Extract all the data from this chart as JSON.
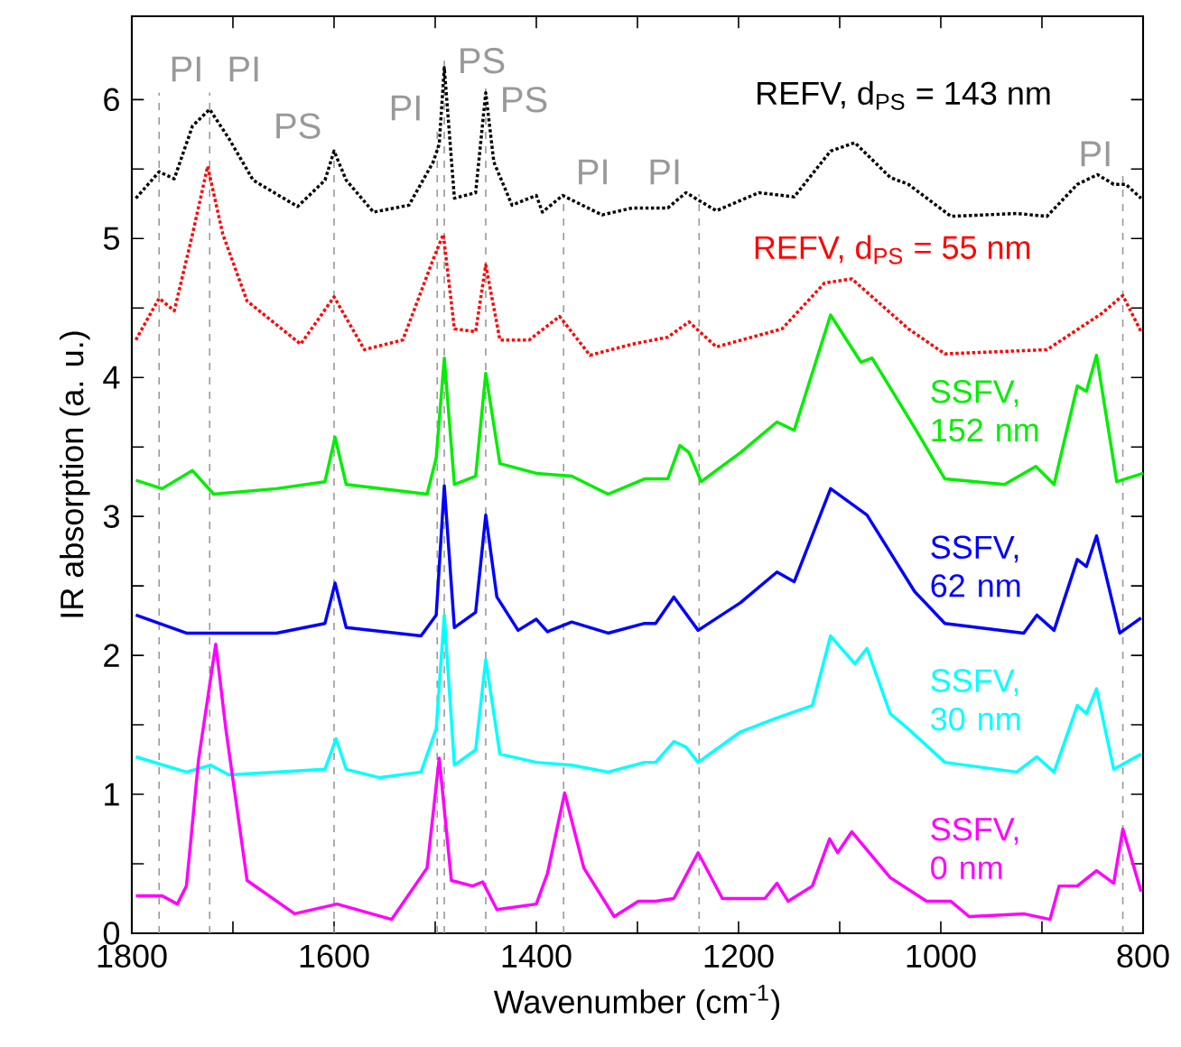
{
  "chart_data": {
    "type": "line",
    "xlabel": "Wavenumber (cm$^{-1}$)",
    "ylabel": "IR absorption (a. u.)",
    "xlim": [
      1800,
      800
    ],
    "ylim": [
      0,
      6.6
    ],
    "xticks": [
      1800,
      {
        "value": 1700,
        "label": null
      },
      1600,
      {
        "value": 1500,
        "label": null
      },
      1400,
      {
        "value": 1300,
        "label": null
      },
      1200,
      {
        "value": 1100,
        "label": null
      },
      1000,
      {
        "value": 900,
        "label": null
      },
      800
    ],
    "yticks": [
      0,
      {
        "value": 0.5,
        "label": null
      },
      1,
      {
        "value": 1.5,
        "label": null
      },
      2,
      {
        "value": 2.5,
        "label": null
      },
      3,
      {
        "value": 3.5,
        "label": null
      },
      4,
      {
        "value": 4.5,
        "label": null
      },
      5,
      {
        "value": 5.5,
        "label": null
      },
      6
    ],
    "ref_lines": [
      {
        "axis": "x",
        "value": 1773,
        "label": "PI",
        "color": "#999999",
        "line_style": "dashed"
      },
      {
        "axis": "x",
        "value": 1723,
        "label": "PI",
        "color": "#999999",
        "line_style": "dashed"
      },
      {
        "axis": "x",
        "value": 1600,
        "label": "PS",
        "color": "#999999",
        "line_style": "dashed"
      },
      {
        "axis": "x",
        "value": 1498,
        "label": "PI",
        "color": "#999999",
        "line_style": "dashed"
      },
      {
        "axis": "x",
        "value": 1491,
        "label": "PS",
        "color": "#999999",
        "line_style": "dashed"
      },
      {
        "axis": "x",
        "value": 1450,
        "label": "PS",
        "color": "#999999",
        "line_style": "dashed"
      },
      {
        "axis": "x",
        "value": 1373,
        "label": "PI",
        "color": "#999999",
        "line_style": "dashed"
      },
      {
        "axis": "x",
        "value": 1239,
        "label": "PI",
        "color": "#999999",
        "line_style": "dashed"
      },
      {
        "axis": "x",
        "value": 820,
        "label": "PI",
        "color": "#999999",
        "line_style": "dashed"
      }
    ],
    "series": [
      {
        "name": "REFV, d$_{PS}$ = 143 nm",
        "color": "#000000",
        "line_style": "dotted",
        "x": [
          1796,
          1773,
          1758,
          1740,
          1723,
          1704,
          1680,
          1636,
          1609,
          1600,
          1588,
          1561,
          1526,
          1502,
          1496,
          1491,
          1481,
          1460,
          1450,
          1442,
          1424,
          1400,
          1394,
          1374,
          1335,
          1305,
          1270,
          1252,
          1222,
          1180,
          1145,
          1109,
          1085,
          1050,
          1032,
          990,
          925,
          895,
          865,
          845,
          829,
          817,
          802
        ],
        "values": [
          5.29,
          5.48,
          5.43,
          5.81,
          5.93,
          5.72,
          5.42,
          5.23,
          5.42,
          5.63,
          5.42,
          5.19,
          5.24,
          5.55,
          5.68,
          6.23,
          5.29,
          5.33,
          6.05,
          5.55,
          5.24,
          5.31,
          5.19,
          5.31,
          5.17,
          5.22,
          5.22,
          5.33,
          5.2,
          5.33,
          5.3,
          5.63,
          5.69,
          5.44,
          5.39,
          5.16,
          5.18,
          5.16,
          5.39,
          5.46,
          5.39,
          5.39,
          5.29
        ]
      },
      {
        "name": "REFV, d$_{PS}$ = 55 nm",
        "color": "#ff0000",
        "line_style": "dotted",
        "x": [
          1796,
          1773,
          1758,
          1740,
          1725,
          1710,
          1686,
          1633,
          1600,
          1570,
          1532,
          1502,
          1492,
          1481,
          1460,
          1450,
          1436,
          1407,
          1377,
          1347,
          1305,
          1270,
          1249,
          1222,
          1157,
          1115,
          1088,
          1032,
          996,
          895,
          841,
          820,
          802
        ],
        "values": [
          4.27,
          4.57,
          4.48,
          5.03,
          5.52,
          5.03,
          4.55,
          4.24,
          4.58,
          4.2,
          4.27,
          4.85,
          5.03,
          4.35,
          4.33,
          4.81,
          4.27,
          4.27,
          4.44,
          4.16,
          4.24,
          4.29,
          4.4,
          4.22,
          4.35,
          4.68,
          4.71,
          4.35,
          4.17,
          4.2,
          4.46,
          4.59,
          4.33
        ]
      },
      {
        "name": "SSFV, 152 nm",
        "color": "#00ee00",
        "line_style": "solid",
        "x": [
          1796,
          1770,
          1740,
          1719,
          1657,
          1609,
          1599,
          1588,
          1508,
          1499,
          1491,
          1481,
          1460,
          1450,
          1436,
          1400,
          1365,
          1329,
          1293,
          1270,
          1258,
          1249,
          1237,
          1198,
          1162,
          1145,
          1109,
          1079,
          1068,
          1026,
          996,
          937,
          906,
          888,
          865,
          856,
          846,
          826,
          800
        ],
        "values": [
          3.26,
          3.2,
          3.33,
          3.16,
          3.2,
          3.25,
          3.57,
          3.23,
          3.16,
          3.42,
          4.14,
          3.23,
          3.29,
          4.03,
          3.38,
          3.31,
          3.29,
          3.16,
          3.27,
          3.27,
          3.51,
          3.46,
          3.25,
          3.46,
          3.68,
          3.62,
          4.45,
          4.11,
          4.14,
          3.64,
          3.27,
          3.23,
          3.36,
          3.23,
          3.94,
          3.9,
          4.16,
          3.25,
          3.31
        ]
      },
      {
        "name": "SSFV, 62 nm",
        "color": "#0000ff",
        "line_style": "solid",
        "x": [
          1796,
          1746,
          1657,
          1609,
          1599,
          1588,
          1514,
          1499,
          1491,
          1481,
          1460,
          1450,
          1439,
          1418,
          1400,
          1389,
          1365,
          1329,
          1293,
          1282,
          1264,
          1240,
          1198,
          1162,
          1145,
          1109,
          1073,
          1026,
          996,
          918,
          905,
          888,
          865,
          856,
          846,
          823,
          802
        ],
        "values": [
          2.29,
          2.16,
          2.16,
          2.23,
          2.52,
          2.2,
          2.14,
          2.29,
          3.22,
          2.2,
          2.31,
          3.01,
          2.42,
          2.18,
          2.26,
          2.17,
          2.24,
          2.16,
          2.23,
          2.23,
          2.42,
          2.18,
          2.38,
          2.6,
          2.53,
          3.2,
          3.01,
          2.46,
          2.23,
          2.16,
          2.29,
          2.18,
          2.69,
          2.64,
          2.86,
          2.16,
          2.27
        ]
      },
      {
        "name": "SSFV, 30 nm",
        "color": "#00ffff",
        "line_style": "solid",
        "x": [
          1796,
          1746,
          1722,
          1704,
          1609,
          1598,
          1588,
          1555,
          1514,
          1499,
          1491,
          1481,
          1460,
          1450,
          1436,
          1400,
          1365,
          1329,
          1293,
          1282,
          1264,
          1252,
          1240,
          1198,
          1162,
          1127,
          1109,
          1085,
          1073,
          1050,
          1032,
          996,
          925,
          905,
          888,
          865,
          856,
          846,
          829,
          802
        ],
        "values": [
          1.27,
          1.16,
          1.21,
          1.14,
          1.18,
          1.4,
          1.18,
          1.12,
          1.16,
          1.47,
          2.29,
          1.21,
          1.32,
          1.97,
          1.29,
          1.23,
          1.21,
          1.16,
          1.23,
          1.23,
          1.38,
          1.34,
          1.23,
          1.45,
          1.55,
          1.64,
          2.14,
          1.94,
          2.05,
          1.58,
          1.47,
          1.23,
          1.16,
          1.27,
          1.16,
          1.64,
          1.58,
          1.76,
          1.18,
          1.29
        ]
      },
      {
        "name": "SSFV, 0 nm",
        "color": "#ff00ff",
        "line_style": "solid",
        "x": [
          1796,
          1770,
          1755,
          1746,
          1734,
          1717,
          1707,
          1686,
          1639,
          1597,
          1543,
          1508,
          1496,
          1484,
          1463,
          1453,
          1439,
          1400,
          1389,
          1372,
          1353,
          1323,
          1299,
          1282,
          1264,
          1240,
          1216,
          1174,
          1162,
          1151,
          1127,
          1110,
          1102,
          1088,
          1050,
          1014,
          990,
          972,
          918,
          892,
          883,
          865,
          846,
          829,
          820,
          802
        ],
        "values": [
          0.27,
          0.27,
          0.21,
          0.34,
          1.25,
          2.08,
          1.47,
          0.38,
          0.14,
          0.21,
          0.1,
          0.47,
          1.26,
          0.38,
          0.34,
          0.37,
          0.17,
          0.21,
          0.43,
          1.01,
          0.47,
          0.12,
          0.23,
          0.23,
          0.25,
          0.58,
          0.25,
          0.25,
          0.36,
          0.23,
          0.34,
          0.68,
          0.58,
          0.73,
          0.4,
          0.23,
          0.23,
          0.12,
          0.14,
          0.1,
          0.34,
          0.34,
          0.45,
          0.36,
          0.75,
          0.3
        ]
      }
    ]
  }
}
